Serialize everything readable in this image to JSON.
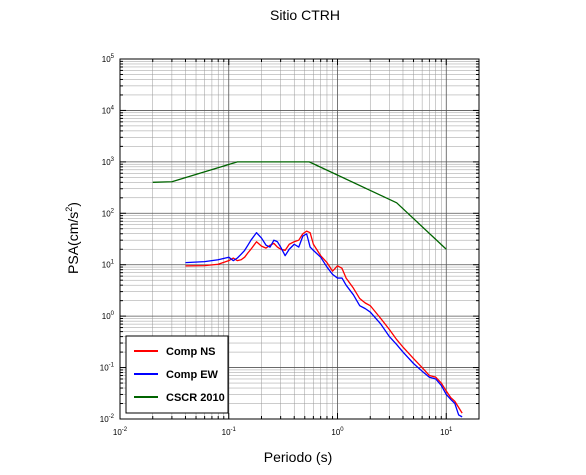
{
  "chart_data": {
    "type": "line",
    "title": "Sitio CTRH",
    "xlabel": "Periodo (s)",
    "ylabel_base": "PSA(cm/s",
    "ylabel_exp": "2",
    "ylabel_close": ")",
    "x_scale": "log",
    "y_scale": "log",
    "xlim": [
      0.01,
      20
    ],
    "ylim": [
      0.01,
      100000
    ],
    "grid": true,
    "legend_position": "bottom-left",
    "x_ticks": [
      {
        "value": 0.01,
        "base": "10",
        "exp": "-2"
      },
      {
        "value": 0.1,
        "base": "10",
        "exp": "-1"
      },
      {
        "value": 1,
        "base": "10",
        "exp": "0"
      },
      {
        "value": 10,
        "base": "10",
        "exp": "1"
      }
    ],
    "y_ticks": [
      {
        "value": 0.01,
        "base": "10",
        "exp": "-2"
      },
      {
        "value": 0.1,
        "base": "10",
        "exp": "-1"
      },
      {
        "value": 1,
        "base": "10",
        "exp": "0"
      },
      {
        "value": 10,
        "base": "10",
        "exp": "1"
      },
      {
        "value": 100,
        "base": "10",
        "exp": "2"
      },
      {
        "value": 1000,
        "base": "10",
        "exp": "3"
      },
      {
        "value": 10000,
        "base": "10",
        "exp": "4"
      },
      {
        "value": 100000,
        "base": "10",
        "exp": "5"
      }
    ],
    "series": [
      {
        "name": "Comp NS",
        "color": "#ff0000",
        "x": [
          0.04,
          0.06,
          0.08,
          0.1,
          0.11,
          0.12,
          0.13,
          0.14,
          0.15,
          0.16,
          0.18,
          0.2,
          0.22,
          0.24,
          0.26,
          0.28,
          0.3,
          0.33,
          0.36,
          0.4,
          0.44,
          0.48,
          0.52,
          0.56,
          0.6,
          0.7,
          0.8,
          0.9,
          1.0,
          1.1,
          1.2,
          1.4,
          1.6,
          1.8,
          2.0,
          2.5,
          3.0,
          3.5,
          4.0,
          5.0,
          6.0,
          7.0,
          8.0,
          9.0,
          10.0,
          11.0,
          12.0,
          14.0
        ],
        "y": [
          9.5,
          9.6,
          10.2,
          12.0,
          13.5,
          12.0,
          12.5,
          14.0,
          17.0,
          20.0,
          28.0,
          23.0,
          21.0,
          24.0,
          26.0,
          22.0,
          20.0,
          19.0,
          25.0,
          28.0,
          30.0,
          40.0,
          45.0,
          42.0,
          25.0,
          15.0,
          11.0,
          7.5,
          9.5,
          8.5,
          5.5,
          3.5,
          2.2,
          1.8,
          1.6,
          0.9,
          0.55,
          0.35,
          0.25,
          0.15,
          0.1,
          0.07,
          0.065,
          0.05,
          0.035,
          0.026,
          0.022,
          0.013
        ]
      },
      {
        "name": "Comp EW",
        "color": "#0000ff",
        "x": [
          0.04,
          0.06,
          0.08,
          0.1,
          0.11,
          0.12,
          0.13,
          0.14,
          0.15,
          0.16,
          0.18,
          0.2,
          0.22,
          0.24,
          0.26,
          0.28,
          0.3,
          0.33,
          0.36,
          0.4,
          0.44,
          0.48,
          0.52,
          0.56,
          0.6,
          0.7,
          0.8,
          0.9,
          1.0,
          1.1,
          1.2,
          1.4,
          1.6,
          1.8,
          2.0,
          2.5,
          3.0,
          3.5,
          4.0,
          5.0,
          6.0,
          7.0,
          8.0,
          9.0,
          10.0,
          11.0,
          12.0,
          13.0,
          14.0
        ],
        "y": [
          11.0,
          11.5,
          12.5,
          14.0,
          12.0,
          13.5,
          16.0,
          19.0,
          24.0,
          30.0,
          42.0,
          33.0,
          24.0,
          22.0,
          30.0,
          28.0,
          22.0,
          15.0,
          20.0,
          25.0,
          22.0,
          36.0,
          40.0,
          22.0,
          19.0,
          14.0,
          9.0,
          6.5,
          5.5,
          5.5,
          4.0,
          2.6,
          1.6,
          1.4,
          1.2,
          0.7,
          0.4,
          0.28,
          0.2,
          0.12,
          0.085,
          0.065,
          0.06,
          0.045,
          0.03,
          0.024,
          0.02,
          0.012,
          0.011
        ]
      },
      {
        "name": "CSCR 2010",
        "color": "#006400",
        "x": [
          0.02,
          0.03,
          0.12,
          0.55,
          3.5,
          10.0
        ],
        "y": [
          400,
          410,
          1000,
          1000,
          160,
          20
        ]
      }
    ]
  }
}
